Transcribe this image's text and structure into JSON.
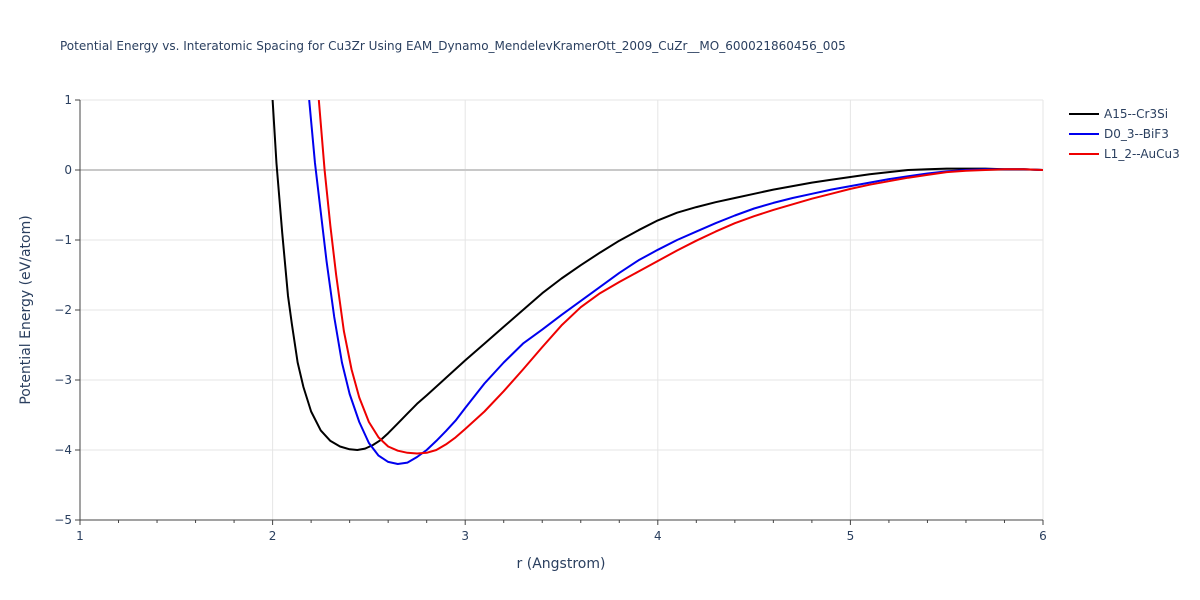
{
  "chart_data": {
    "type": "line",
    "title": "Potential Energy vs. Interatomic Spacing for Cu3Zr Using EAM_Dynamo_MendelevKramerOtt_2009_CuZr__MO_600021860456_005",
    "xlabel": "r (Angstrom)",
    "ylabel": "Potential Energy (eV/atom)",
    "xlim": [
      1,
      6
    ],
    "ylim": [
      -5,
      1
    ],
    "xticks": [
      "1",
      "2",
      "3",
      "4",
      "5",
      "6"
    ],
    "yticks": [
      "1",
      "0",
      "−1",
      "−2",
      "−3",
      "−4",
      "−5"
    ],
    "grid": true,
    "legend_position": "top-right",
    "series": [
      {
        "name": "A15--Cr3Si",
        "color": "#000000",
        "x": [
          2.0,
          2.02,
          2.05,
          2.08,
          2.1,
          2.13,
          2.16,
          2.2,
          2.25,
          2.3,
          2.35,
          2.4,
          2.44,
          2.48,
          2.52,
          2.56,
          2.6,
          2.65,
          2.7,
          2.75,
          2.8,
          2.9,
          3.0,
          3.1,
          3.2,
          3.3,
          3.4,
          3.5,
          3.6,
          3.7,
          3.8,
          3.9,
          4.0,
          4.1,
          4.2,
          4.3,
          4.4,
          4.5,
          4.6,
          4.7,
          4.8,
          4.9,
          5.0,
          5.1,
          5.2,
          5.3,
          5.4,
          5.5,
          5.6,
          5.7,
          5.8,
          5.9,
          6.0
        ],
        "y": [
          1.0,
          0.1,
          -0.9,
          -1.8,
          -2.2,
          -2.75,
          -3.1,
          -3.45,
          -3.72,
          -3.87,
          -3.95,
          -3.99,
          -4.0,
          -3.98,
          -3.93,
          -3.86,
          -3.76,
          -3.62,
          -3.48,
          -3.34,
          -3.22,
          -2.97,
          -2.72,
          -2.48,
          -2.24,
          -2.0,
          -1.76,
          -1.55,
          -1.36,
          -1.18,
          -1.01,
          -0.86,
          -0.72,
          -0.61,
          -0.53,
          -0.46,
          -0.4,
          -0.34,
          -0.28,
          -0.23,
          -0.18,
          -0.14,
          -0.1,
          -0.06,
          -0.03,
          0.0,
          0.01,
          0.02,
          0.02,
          0.02,
          0.01,
          0.01,
          0.0
        ]
      },
      {
        "name": "D0_3--BiF3",
        "color": "#0000ee",
        "x": [
          2.19,
          2.22,
          2.25,
          2.28,
          2.32,
          2.36,
          2.4,
          2.45,
          2.5,
          2.55,
          2.6,
          2.65,
          2.7,
          2.75,
          2.8,
          2.85,
          2.9,
          2.95,
          3.0,
          3.1,
          3.2,
          3.3,
          3.4,
          3.5,
          3.6,
          3.7,
          3.8,
          3.9,
          4.0,
          4.1,
          4.2,
          4.3,
          4.4,
          4.5,
          4.6,
          4.7,
          4.8,
          4.9,
          5.0,
          5.1,
          5.2,
          5.3,
          5.4,
          5.5,
          5.6,
          5.7,
          5.8,
          5.9,
          6.0
        ],
        "y": [
          1.0,
          0.1,
          -0.6,
          -1.3,
          -2.1,
          -2.75,
          -3.2,
          -3.6,
          -3.9,
          -4.08,
          -4.17,
          -4.2,
          -4.18,
          -4.1,
          -4.0,
          -3.87,
          -3.73,
          -3.58,
          -3.4,
          -3.05,
          -2.75,
          -2.48,
          -2.28,
          -2.07,
          -1.87,
          -1.67,
          -1.47,
          -1.29,
          -1.14,
          -1.0,
          -0.88,
          -0.76,
          -0.65,
          -0.55,
          -0.47,
          -0.4,
          -0.34,
          -0.28,
          -0.23,
          -0.18,
          -0.13,
          -0.09,
          -0.05,
          -0.02,
          0.0,
          0.01,
          0.01,
          0.01,
          0.0
        ]
      },
      {
        "name": "L1_2--AuCu3",
        "color": "#ee0000",
        "x": [
          2.24,
          2.27,
          2.3,
          2.33,
          2.37,
          2.41,
          2.45,
          2.5,
          2.55,
          2.6,
          2.65,
          2.7,
          2.75,
          2.8,
          2.85,
          2.9,
          2.95,
          3.0,
          3.1,
          3.2,
          3.3,
          3.4,
          3.5,
          3.6,
          3.7,
          3.8,
          3.9,
          4.0,
          4.1,
          4.2,
          4.3,
          4.4,
          4.5,
          4.6,
          4.7,
          4.8,
          4.9,
          5.0,
          5.1,
          5.2,
          5.3,
          5.4,
          5.5,
          5.6,
          5.7,
          5.8,
          5.9,
          6.0
        ],
        "y": [
          1.0,
          0.0,
          -0.8,
          -1.5,
          -2.3,
          -2.85,
          -3.25,
          -3.6,
          -3.82,
          -3.95,
          -4.01,
          -4.04,
          -4.05,
          -4.04,
          -4.0,
          -3.92,
          -3.82,
          -3.7,
          -3.45,
          -3.16,
          -2.85,
          -2.53,
          -2.22,
          -1.96,
          -1.76,
          -1.6,
          -1.45,
          -1.3,
          -1.15,
          -1.01,
          -0.88,
          -0.76,
          -0.66,
          -0.57,
          -0.49,
          -0.41,
          -0.34,
          -0.27,
          -0.21,
          -0.16,
          -0.11,
          -0.07,
          -0.03,
          -0.01,
          0.0,
          0.01,
          0.01,
          0.0
        ]
      }
    ]
  }
}
